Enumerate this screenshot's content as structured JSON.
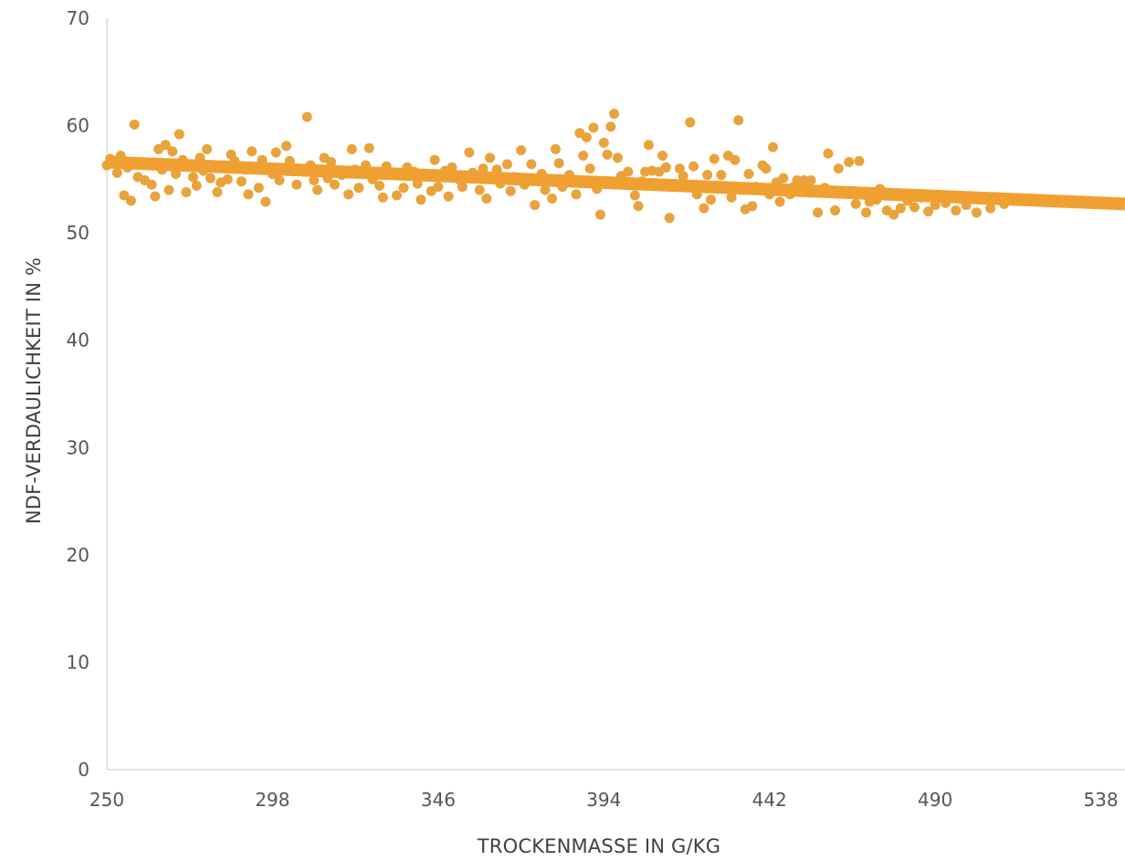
{
  "chart_data": {
    "type": "scatter",
    "xlabel": "TROCKENMASSE IN G/KG",
    "ylabel": "NDF-VERDAULICHKEIT IN %",
    "xlim": [
      250,
      545
    ],
    "ylim": [
      0,
      70
    ],
    "x_ticks": [
      250,
      298,
      346,
      394,
      442,
      490,
      538
    ],
    "y_ticks": [
      0,
      10,
      20,
      30,
      40,
      50,
      60,
      70
    ],
    "grid": false,
    "colors": {
      "points": "#E8A33C",
      "trend": "#F0A030",
      "axis": "#D9D9D9"
    },
    "series": [
      {
        "type": "scatter",
        "values": [
          [
            250,
            56.3
          ],
          [
            251,
            56.9
          ],
          [
            253,
            55.6
          ],
          [
            254,
            57.2
          ],
          [
            255,
            53.5
          ],
          [
            256,
            56.1
          ],
          [
            257,
            53.0
          ],
          [
            258,
            60.1
          ],
          [
            259,
            55.2
          ],
          [
            261,
            54.9
          ],
          [
            262,
            56.4
          ],
          [
            263,
            54.5
          ],
          [
            264,
            53.4
          ],
          [
            265,
            57.8
          ],
          [
            266,
            55.9
          ],
          [
            267,
            58.2
          ],
          [
            268,
            54.0
          ],
          [
            269,
            57.6
          ],
          [
            270,
            55.5
          ],
          [
            271,
            59.2
          ],
          [
            272,
            56.8
          ],
          [
            273,
            53.8
          ],
          [
            275,
            55.2
          ],
          [
            276,
            54.4
          ],
          [
            277,
            57.0
          ],
          [
            278,
            55.8
          ],
          [
            279,
            57.8
          ],
          [
            280,
            55.1
          ],
          [
            282,
            53.8
          ],
          [
            283,
            54.7
          ],
          [
            284,
            56.3
          ],
          [
            285,
            55.0
          ],
          [
            286,
            57.3
          ],
          [
            287,
            56.7
          ],
          [
            289,
            54.8
          ],
          [
            290,
            55.9
          ],
          [
            291,
            53.6
          ],
          [
            292,
            57.6
          ],
          [
            294,
            54.2
          ],
          [
            295,
            56.8
          ],
          [
            296,
            52.9
          ],
          [
            298,
            55.5
          ],
          [
            299,
            57.5
          ],
          [
            300,
            54.9
          ],
          [
            302,
            58.1
          ],
          [
            303,
            56.7
          ],
          [
            305,
            54.5
          ],
          [
            307,
            55.8
          ],
          [
            308,
            60.8
          ],
          [
            309,
            56.3
          ],
          [
            310,
            54.9
          ],
          [
            311,
            54.0
          ],
          [
            313,
            57.0
          ],
          [
            314,
            55.1
          ],
          [
            315,
            56.6
          ],
          [
            316,
            54.5
          ],
          [
            318,
            55.4
          ],
          [
            320,
            53.6
          ],
          [
            321,
            57.8
          ],
          [
            322,
            55.9
          ],
          [
            323,
            54.2
          ],
          [
            325,
            56.3
          ],
          [
            326,
            57.9
          ],
          [
            327,
            55.0
          ],
          [
            329,
            54.4
          ],
          [
            330,
            53.3
          ],
          [
            331,
            56.2
          ],
          [
            333,
            55.5
          ],
          [
            334,
            53.5
          ],
          [
            336,
            54.2
          ],
          [
            337,
            56.1
          ],
          [
            339,
            55.7
          ],
          [
            340,
            54.6
          ],
          [
            341,
            53.1
          ],
          [
            343,
            55.4
          ],
          [
            344,
            53.9
          ],
          [
            345,
            56.8
          ],
          [
            346,
            54.3
          ],
          [
            348,
            55.8
          ],
          [
            349,
            53.4
          ],
          [
            350,
            56.1
          ],
          [
            352,
            55.0
          ],
          [
            353,
            54.3
          ],
          [
            355,
            57.5
          ],
          [
            356,
            55.6
          ],
          [
            358,
            54.0
          ],
          [
            359,
            56.0
          ],
          [
            360,
            53.2
          ],
          [
            361,
            57.0
          ],
          [
            363,
            55.9
          ],
          [
            364,
            54.6
          ],
          [
            366,
            56.4
          ],
          [
            367,
            53.9
          ],
          [
            368,
            55.2
          ],
          [
            370,
            57.7
          ],
          [
            371,
            54.5
          ],
          [
            373,
            56.4
          ],
          [
            374,
            52.6
          ],
          [
            376,
            55.5
          ],
          [
            377,
            54.0
          ],
          [
            379,
            53.2
          ],
          [
            380,
            57.8
          ],
          [
            381,
            56.5
          ],
          [
            382,
            54.3
          ],
          [
            384,
            55.4
          ],
          [
            386,
            53.6
          ],
          [
            387,
            59.3
          ],
          [
            388,
            57.2
          ],
          [
            389,
            58.9
          ],
          [
            390,
            56.0
          ],
          [
            391,
            59.8
          ],
          [
            392,
            54.1
          ],
          [
            393,
            51.7
          ],
          [
            394,
            58.4
          ],
          [
            395,
            57.3
          ],
          [
            396,
            59.9
          ],
          [
            397,
            61.1
          ],
          [
            398,
            57.0
          ],
          [
            399,
            55.3
          ],
          [
            401,
            55.7
          ],
          [
            403,
            53.5
          ],
          [
            404,
            52.5
          ],
          [
            405,
            54.8
          ],
          [
            406,
            55.7
          ],
          [
            407,
            58.2
          ],
          [
            408,
            55.8
          ],
          [
            410,
            55.7
          ],
          [
            411,
            57.2
          ],
          [
            412,
            56.1
          ],
          [
            413,
            51.4
          ],
          [
            414,
            54.4
          ],
          [
            416,
            56.0
          ],
          [
            417,
            55.3
          ],
          [
            419,
            60.3
          ],
          [
            420,
            56.2
          ],
          [
            421,
            53.6
          ],
          [
            423,
            52.3
          ],
          [
            424,
            55.4
          ],
          [
            425,
            53.1
          ],
          [
            426,
            56.9
          ],
          [
            427,
            54.2
          ],
          [
            428,
            55.4
          ],
          [
            430,
            57.2
          ],
          [
            431,
            53.3
          ],
          [
            432,
            56.8
          ],
          [
            433,
            60.5
          ],
          [
            434,
            54.1
          ],
          [
            435,
            52.2
          ],
          [
            436,
            55.5
          ],
          [
            437,
            52.5
          ],
          [
            438,
            54.3
          ],
          [
            440,
            56.3
          ],
          [
            441,
            56.0
          ],
          [
            442,
            53.6
          ],
          [
            443,
            58.0
          ],
          [
            444,
            54.7
          ],
          [
            445,
            52.9
          ],
          [
            446,
            55.1
          ],
          [
            448,
            53.6
          ],
          [
            449,
            54.3
          ],
          [
            450,
            54.9
          ],
          [
            452,
            54.9
          ],
          [
            454,
            54.9
          ],
          [
            456,
            51.9
          ],
          [
            458,
            54.2
          ],
          [
            459,
            57.4
          ],
          [
            461,
            52.1
          ],
          [
            462,
            56.0
          ],
          [
            464,
            53.7
          ],
          [
            465,
            56.6
          ],
          [
            467,
            52.7
          ],
          [
            468,
            56.7
          ],
          [
            470,
            51.9
          ],
          [
            471,
            52.9
          ],
          [
            473,
            53.1
          ],
          [
            474,
            54.1
          ],
          [
            476,
            52.1
          ],
          [
            478,
            51.7
          ],
          [
            480,
            52.3
          ],
          [
            482,
            53.0
          ],
          [
            484,
            52.4
          ],
          [
            486,
            53.3
          ],
          [
            488,
            52.0
          ],
          [
            490,
            52.6
          ],
          [
            493,
            52.8
          ],
          [
            496,
            52.1
          ],
          [
            499,
            52.6
          ],
          [
            502,
            51.9
          ],
          [
            506,
            52.3
          ],
          [
            510,
            52.7
          ]
        ]
      },
      {
        "type": "line",
        "values": [
          [
            250,
            56.6
          ],
          [
            545,
            52.7
          ]
        ]
      }
    ]
  }
}
